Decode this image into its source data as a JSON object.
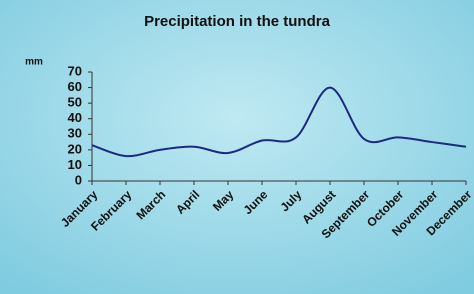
{
  "chart_data": {
    "type": "line",
    "title": "Precipitation in the tundra",
    "y_label": "mm",
    "categories": [
      "January",
      "February",
      "March",
      "April",
      "May",
      "June",
      "July",
      "August",
      "September",
      "October",
      "November",
      "December"
    ],
    "series": [
      {
        "name": "Precipitation",
        "color": "#1c2a80",
        "values": [
          23,
          16,
          20,
          22,
          18,
          26,
          28,
          60,
          27,
          28,
          25,
          22
        ]
      }
    ],
    "ylim": [
      0,
      70
    ],
    "yticks": [
      0,
      10,
      20,
      30,
      40,
      50,
      60,
      70
    ],
    "smooth": true
  }
}
